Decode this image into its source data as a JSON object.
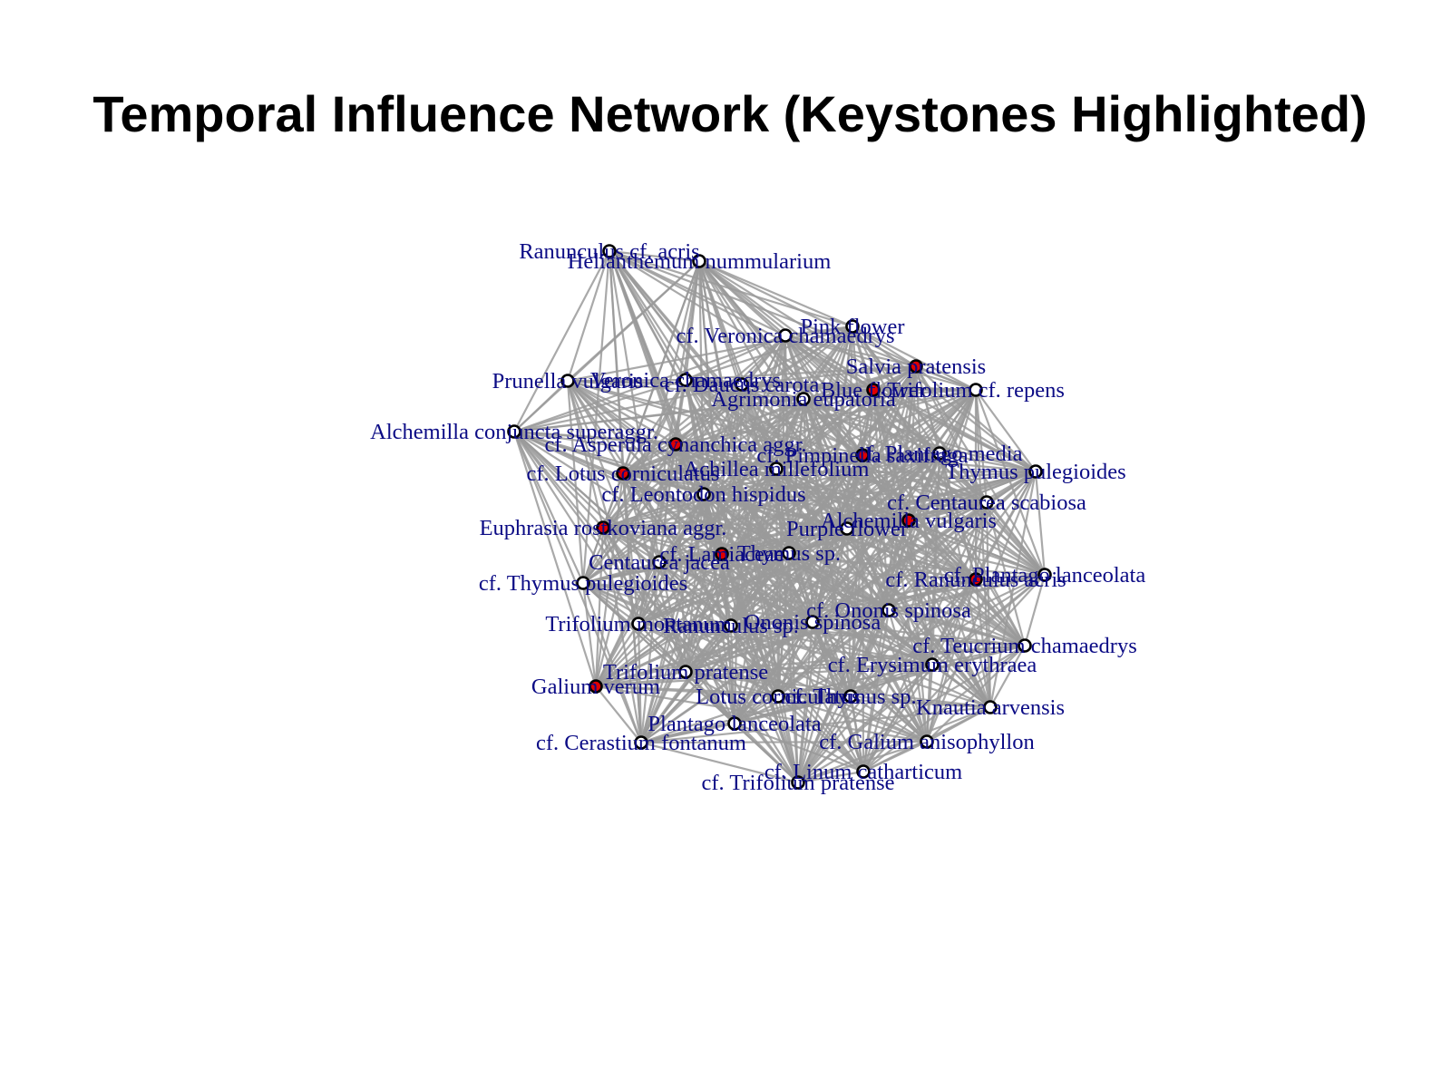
{
  "title": "Temporal Influence Network (Keystones Highlighted)",
  "colors": {
    "edge": "#9a9a9a",
    "keystone_node": "#e00000",
    "regular_node": "#ffffff",
    "node_border": "#000000",
    "label": "#0b0b85"
  },
  "nodes": [
    {
      "id": "n01",
      "label": "Ranunculus cf. acris",
      "keystone": false
    },
    {
      "id": "n02",
      "label": "Helianthemum nummularium",
      "keystone": false
    },
    {
      "id": "n03",
      "label": "Pink flower",
      "keystone": false
    },
    {
      "id": "n04",
      "label": "cf. Veronica chamaedrys",
      "keystone": false
    },
    {
      "id": "n05",
      "label": "Salvia pratensis",
      "keystone": true
    },
    {
      "id": "n06",
      "label": "Prunella vulgaris",
      "keystone": false
    },
    {
      "id": "n07",
      "label": "Veronica chamaedrys",
      "keystone": false
    },
    {
      "id": "n08",
      "label": "cf. Daucus carota",
      "keystone": false
    },
    {
      "id": "n09",
      "label": "Blue flower",
      "keystone": true
    },
    {
      "id": "n10",
      "label": "Trifolium cf. repens",
      "keystone": false
    },
    {
      "id": "n11",
      "label": "Agrimonia eupatoria",
      "keystone": false
    },
    {
      "id": "n12",
      "label": "Alchemilla conjuncta superaggr.",
      "keystone": false
    },
    {
      "id": "n13",
      "label": "cf. Asperula cynanchica aggr.",
      "keystone": true
    },
    {
      "id": "n14",
      "label": "cf. Pimpinella saxifraga",
      "keystone": true
    },
    {
      "id": "n15",
      "label": "cf. Plantago media",
      "keystone": false
    },
    {
      "id": "n16",
      "label": "cf. Lotus corniculatus",
      "keystone": true
    },
    {
      "id": "n17",
      "label": "Achillea millefolium",
      "keystone": false
    },
    {
      "id": "n18",
      "label": "Thymus pulegioides",
      "keystone": false
    },
    {
      "id": "n19",
      "label": "cf. Leontodon hispidus",
      "keystone": false
    },
    {
      "id": "n20",
      "label": "cf. Centaurea scabiosa",
      "keystone": false
    },
    {
      "id": "n21",
      "label": "Euphrasia rostkoviana aggr.",
      "keystone": true
    },
    {
      "id": "n22",
      "label": "Alchemilla vulgaris",
      "keystone": true
    },
    {
      "id": "n23",
      "label": "Purple flower",
      "keystone": false
    },
    {
      "id": "n24",
      "label": "cf. Lamiaceae",
      "keystone": true
    },
    {
      "id": "n25",
      "label": "Thymus sp.",
      "keystone": false
    },
    {
      "id": "n26",
      "label": "Centaurea jacea",
      "keystone": false
    },
    {
      "id": "n27",
      "label": "cf. Plantago lanceolata",
      "keystone": false
    },
    {
      "id": "n28",
      "label": "cf. Thymus pulegioides",
      "keystone": false
    },
    {
      "id": "n29",
      "label": "cf. Ranunculus acris",
      "keystone": true
    },
    {
      "id": "n30",
      "label": "cf. Ononis spinosa",
      "keystone": false
    },
    {
      "id": "n31",
      "label": "Ononis spinosa",
      "keystone": false
    },
    {
      "id": "n32",
      "label": "Trifolium montanum",
      "keystone": false
    },
    {
      "id": "n33",
      "label": "Ranunculus sp.",
      "keystone": false
    },
    {
      "id": "n34",
      "label": "cf. Teucrium chamaedrys",
      "keystone": false
    },
    {
      "id": "n35",
      "label": "cf. Erysimum erythraea",
      "keystone": false
    },
    {
      "id": "n36",
      "label": "Trifolium pratense",
      "keystone": false
    },
    {
      "id": "n37",
      "label": "Galium verum",
      "keystone": true
    },
    {
      "id": "n38",
      "label": "Lotus corniculatus",
      "keystone": false
    },
    {
      "id": "n39",
      "label": "cf. Thymus sp.",
      "keystone": false
    },
    {
      "id": "n40",
      "label": "Knautia arvensis",
      "keystone": false
    },
    {
      "id": "n41",
      "label": "Plantago lanceolata",
      "keystone": false
    },
    {
      "id": "n42",
      "label": "cf. Galium anisophyllon",
      "keystone": false
    },
    {
      "id": "n43",
      "label": "cf. Cerastium fontanum",
      "keystone": false
    },
    {
      "id": "n44",
      "label": "cf. Linum catharticum",
      "keystone": false
    },
    {
      "id": "n45",
      "label": "cf. Trifolium pratense",
      "keystone": false
    }
  ]
}
